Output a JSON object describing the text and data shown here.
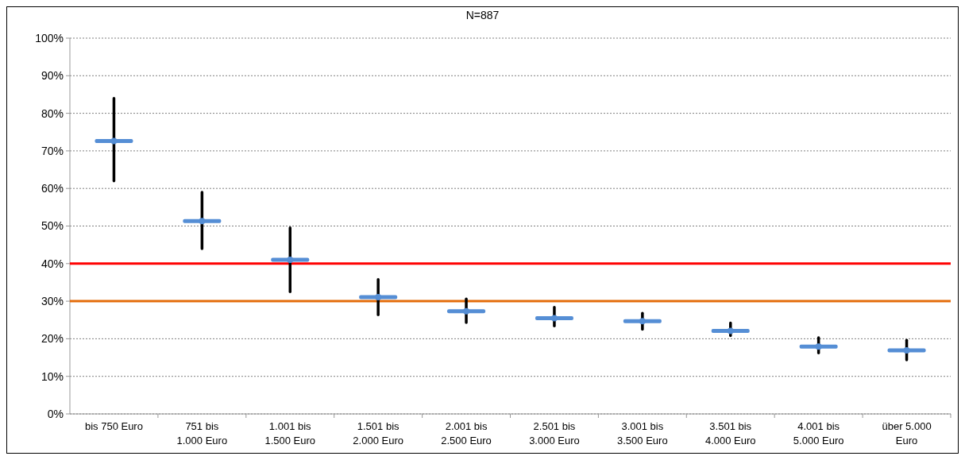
{
  "chart_data": {
    "type": "scatter",
    "title": "N=887",
    "categories": [
      "bis 750 Euro",
      "751 bis 1.000 Euro",
      "1.001 bis 1.500 Euro",
      "1.501 bis 2.000 Euro",
      "2.001 bis 2.500 Euro",
      "2.501 bis 3.000 Euro",
      "3.001 bis 3.500 Euro",
      "3.501 bis 4.000 Euro",
      "4.001 bis 5.000 Euro",
      "über 5.000 Euro"
    ],
    "series": [
      {
        "color": "#558ed5",
        "values": [
          72.6,
          51.3,
          41,
          31.1,
          27.3,
          25.5,
          24.7,
          22.1,
          17.9,
          16.9
        ],
        "errors": [
          [
            62,
            84
          ],
          [
            44,
            59
          ],
          [
            32.5,
            49.5
          ],
          [
            26.4,
            35.8
          ],
          [
            24.3,
            30.6
          ],
          [
            23.4,
            28.4
          ],
          [
            22.5,
            26.8
          ],
          [
            20.8,
            24.2
          ],
          [
            16.2,
            20.3
          ],
          [
            14.4,
            19.6
          ]
        ]
      }
    ],
    "ylim": [
      0,
      100
    ],
    "yticks": [
      {
        "value": 0,
        "label": "0%"
      },
      {
        "value": 10,
        "label": "10%"
      },
      {
        "value": 20,
        "label": "20%"
      },
      {
        "value": 30,
        "label": "30%"
      },
      {
        "value": 40,
        "label": "40%"
      },
      {
        "value": 50,
        "label": "50%"
      },
      {
        "value": 60,
        "label": "60%"
      },
      {
        "value": 70,
        "label": "70%"
      },
      {
        "value": 80,
        "label": "80%"
      },
      {
        "value": 90,
        "label": "90%"
      },
      {
        "value": 100,
        "label": "100%"
      }
    ],
    "grid": "y",
    "ref_lines": [
      {
        "axis": "y",
        "value": 40,
        "color": "#ff0000"
      },
      {
        "axis": "y",
        "value": 30,
        "color": "#e46c0a"
      }
    ]
  }
}
